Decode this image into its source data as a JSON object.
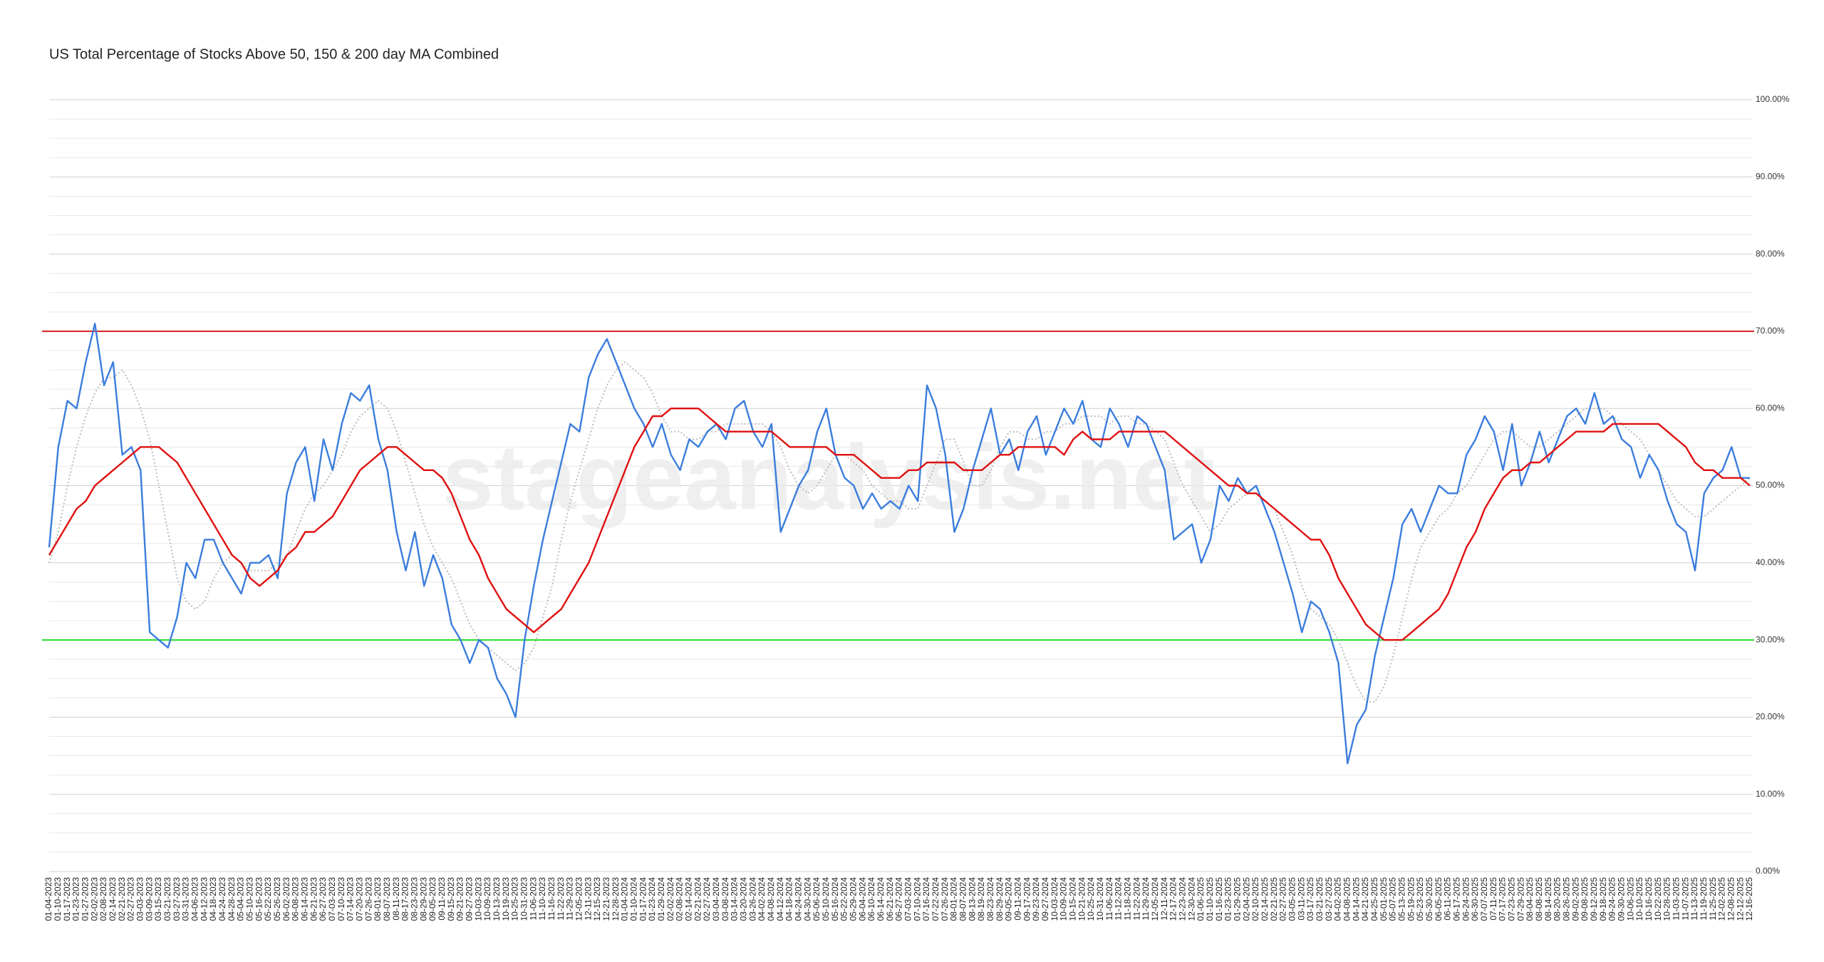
{
  "chart_data": {
    "type": "line",
    "title": "US Total Percentage of Stocks Above 50, 150 & 200 day MA Combined",
    "watermark": "stageanalysis.net",
    "categories": [
      "01-04-2023",
      "01-10-2023",
      "01-17-2023",
      "01-23-2023",
      "01-27-2023",
      "02-02-2023",
      "02-08-2023",
      "02-14-2023",
      "02-21-2023",
      "02-27-2023",
      "03-03-2023",
      "03-09-2023",
      "03-15-2023",
      "03-21-2023",
      "03-27-2023",
      "03-31-2023",
      "04-06-2023",
      "04-12-2023",
      "04-18-2023",
      "04-24-2023",
      "04-28-2023",
      "05-04-2023",
      "05-10-2023",
      "05-16-2023",
      "05-22-2023",
      "05-26-2023",
      "06-02-2023",
      "06-08-2023",
      "06-14-2023",
      "06-21-2023",
      "06-27-2023",
      "07-03-2023",
      "07-10-2023",
      "07-14-2023",
      "07-20-2023",
      "07-26-2023",
      "08-01-2023",
      "08-07-2023",
      "08-11-2023",
      "08-17-2023",
      "08-23-2023",
      "08-29-2023",
      "09-05-2023",
      "09-11-2023",
      "09-15-2023",
      "09-21-2023",
      "09-27-2023",
      "10-03-2023",
      "10-09-2023",
      "10-13-2023",
      "10-19-2023",
      "10-25-2023",
      "10-31-2023",
      "11-06-2023",
      "11-10-2023",
      "11-16-2023",
      "11-22-2023",
      "11-29-2023",
      "12-05-2023",
      "12-11-2023",
      "12-15-2023",
      "12-21-2023",
      "12-28-2023",
      "01-04-2024",
      "01-10-2024",
      "01-17-2024",
      "01-23-2024",
      "01-29-2024",
      "02-02-2024",
      "02-08-2024",
      "02-14-2024",
      "02-21-2024",
      "02-27-2024",
      "03-04-2024",
      "03-08-2024",
      "03-14-2024",
      "03-20-2024",
      "03-26-2024",
      "04-02-2024",
      "04-08-2024",
      "04-12-2024",
      "04-18-2024",
      "04-24-2024",
      "04-30-2024",
      "05-06-2024",
      "05-10-2024",
      "05-16-2024",
      "05-22-2024",
      "05-29-2024",
      "06-04-2024",
      "06-10-2024",
      "06-14-2024",
      "06-21-2024",
      "06-27-2024",
      "07-03-2024",
      "07-10-2024",
      "07-16-2024",
      "07-22-2024",
      "07-26-2024",
      "08-01-2024",
      "08-07-2024",
      "08-13-2024",
      "08-19-2024",
      "08-23-2024",
      "08-29-2024",
      "09-05-2024",
      "09-11-2024",
      "09-17-2024",
      "09-23-2024",
      "09-27-2024",
      "10-03-2024",
      "10-09-2024",
      "10-15-2024",
      "10-21-2024",
      "10-25-2024",
      "10-31-2024",
      "11-06-2024",
      "11-12-2024",
      "11-18-2024",
      "11-22-2024",
      "11-29-2024",
      "12-05-2024",
      "12-11-2024",
      "12-17-2024",
      "12-23-2024",
      "12-30-2024",
      "01-06-2025",
      "01-10-2025",
      "01-16-2025",
      "01-23-2025",
      "01-29-2025",
      "02-04-2025",
      "02-10-2025",
      "02-14-2025",
      "02-21-2025",
      "02-27-2025",
      "03-05-2025",
      "03-11-2025",
      "03-17-2025",
      "03-21-2025",
      "03-27-2025",
      "04-02-2025",
      "04-08-2025",
      "04-14-2025",
      "04-21-2025",
      "04-25-2025",
      "05-01-2025",
      "05-07-2025",
      "05-13-2025",
      "05-19-2025",
      "05-23-2025",
      "05-30-2025",
      "06-05-2025",
      "06-11-2025",
      "06-17-2025",
      "06-24-2025",
      "06-30-2025",
      "07-07-2025",
      "07-11-2025",
      "07-17-2025",
      "07-23-2025",
      "07-29-2025",
      "08-04-2025",
      "08-08-2025",
      "08-14-2025",
      "08-20-2025",
      "08-26-2025",
      "09-02-2025",
      "09-08-2025",
      "09-12-2025",
      "09-18-2025",
      "09-24-2025",
      "09-30-2025",
      "10-06-2025",
      "10-10-2025",
      "10-16-2025",
      "10-22-2025",
      "10-28-2025",
      "11-03-2025",
      "11-07-2025",
      "11-13-2025",
      "11-19-2025",
      "11-25-2025",
      "12-02-2025",
      "12-08-2025",
      "12-12-2025",
      "12-16-2025"
    ],
    "series": [
      {
        "color": "#bbbbbb",
        "line_style": "dotted",
        "values": [
          40,
          44,
          50,
          55,
          59,
          62,
          64,
          64,
          65,
          63,
          60,
          56,
          50,
          44,
          38,
          35,
          34,
          35,
          38,
          40,
          41,
          40,
          39,
          39,
          39,
          40,
          41,
          44,
          47,
          49,
          50,
          52,
          54,
          57,
          59,
          60,
          61,
          60,
          57,
          53,
          49,
          45,
          42,
          40,
          38,
          35,
          32,
          30,
          29,
          28,
          27,
          26,
          27,
          29,
          33,
          37,
          43,
          48,
          52,
          56,
          60,
          63,
          65,
          66,
          65,
          64,
          62,
          59,
          57,
          57,
          56,
          56,
          57,
          57,
          58,
          58,
          58,
          58,
          58,
          57,
          55,
          52,
          50,
          49,
          50,
          52,
          54,
          54,
          53,
          52,
          50,
          49,
          48,
          48,
          47,
          47,
          50,
          53,
          56,
          56,
          53,
          50,
          50,
          52,
          55,
          57,
          57,
          56,
          56,
          57,
          57,
          58,
          58,
          59,
          59,
          59,
          58,
          59,
          59,
          58,
          58,
          57,
          56,
          53,
          50,
          48,
          46,
          44,
          45,
          47,
          48,
          49,
          49,
          48,
          47,
          44,
          41,
          37,
          34,
          33,
          32,
          30,
          27,
          24,
          22,
          22,
          24,
          28,
          33,
          38,
          42,
          44,
          46,
          47,
          49,
          50,
          52,
          54,
          56,
          57,
          57,
          56,
          55,
          55,
          56,
          57,
          58,
          59,
          60,
          60,
          60,
          59,
          58,
          57,
          56,
          54,
          52,
          50,
          48,
          47,
          46,
          46,
          47,
          48,
          49,
          50,
          51
        ]
      },
      {
        "color": "#3b7ddd",
        "line_style": "solid",
        "values": [
          42,
          55,
          61,
          60,
          66,
          71,
          63,
          66,
          54,
          55,
          52,
          31,
          30,
          29,
          33,
          40,
          38,
          43,
          43,
          40,
          38,
          36,
          40,
          40,
          41,
          38,
          49,
          53,
          55,
          48,
          56,
          52,
          58,
          62,
          61,
          63,
          56,
          52,
          44,
          39,
          44,
          37,
          41,
          38,
          32,
          30,
          27,
          30,
          29,
          25,
          23,
          20,
          30,
          37,
          43,
          48,
          53,
          58,
          57,
          64,
          67,
          69,
          66,
          63,
          60,
          58,
          55,
          58,
          54,
          52,
          56,
          55,
          57,
          58,
          56,
          60,
          61,
          57,
          55,
          58,
          44,
          47,
          50,
          52,
          57,
          60,
          54,
          51,
          50,
          47,
          49,
          47,
          48,
          47,
          50,
          48,
          63,
          60,
          54,
          44,
          47,
          52,
          56,
          60,
          54,
          56,
          52,
          57,
          59,
          54,
          57,
          60,
          58,
          61,
          56,
          55,
          60,
          58,
          55,
          59,
          58,
          55,
          52,
          43,
          44,
          45,
          40,
          43,
          50,
          48,
          51,
          49,
          50,
          47,
          44,
          40,
          36,
          31,
          35,
          34,
          31,
          27,
          14,
          19,
          21,
          28,
          33,
          38,
          45,
          47,
          44,
          47,
          50,
          49,
          49,
          54,
          56,
          59,
          57,
          52,
          58,
          50,
          53,
          57,
          53,
          56,
          59,
          60,
          58,
          62,
          58,
          59,
          56,
          55,
          51,
          54,
          52,
          48,
          45,
          44,
          39,
          49,
          51,
          52,
          55,
          51,
          51
        ]
      },
      {
        "color": "#e01010",
        "line_style": "solid",
        "values": [
          41,
          43,
          45,
          47,
          48,
          50,
          51,
          52,
          53,
          54,
          55,
          55,
          55,
          54,
          53,
          51,
          49,
          47,
          45,
          43,
          41,
          40,
          38,
          37,
          38,
          39,
          41,
          42,
          44,
          44,
          45,
          46,
          48,
          50,
          52,
          53,
          54,
          55,
          55,
          54,
          53,
          52,
          52,
          51,
          49,
          46,
          43,
          41,
          38,
          36,
          34,
          33,
          32,
          31,
          32,
          33,
          34,
          36,
          38,
          40,
          43,
          46,
          49,
          52,
          55,
          57,
          59,
          59,
          60,
          60,
          60,
          60,
          59,
          58,
          57,
          57,
          57,
          57,
          57,
          57,
          56,
          55,
          55,
          55,
          55,
          55,
          54,
          54,
          54,
          53,
          52,
          51,
          51,
          51,
          52,
          52,
          53,
          53,
          53,
          53,
          52,
          52,
          52,
          53,
          54,
          54,
          55,
          55,
          55,
          55,
          55,
          54,
          56,
          57,
          56,
          56,
          56,
          57,
          57,
          57,
          57,
          57,
          57,
          56,
          55,
          54,
          53,
          52,
          51,
          50,
          50,
          49,
          49,
          48,
          47,
          46,
          45,
          44,
          43,
          43,
          41,
          38,
          36,
          34,
          32,
          31,
          30,
          30,
          30,
          31,
          32,
          33,
          34,
          36,
          39,
          42,
          44,
          47,
          49,
          51,
          52,
          52,
          53,
          53,
          54,
          55,
          56,
          57,
          57,
          57,
          57,
          58,
          58,
          58,
          58,
          58,
          58,
          57,
          56,
          55,
          53,
          52,
          52,
          51,
          51,
          51,
          50
        ]
      }
    ],
    "ylim": [
      0,
      100
    ],
    "yticks": [
      {
        "value": 0,
        "label": "0.00%"
      },
      {
        "value": 10,
        "label": "10.00%"
      },
      {
        "value": 20,
        "label": "20.00%"
      },
      {
        "value": 30,
        "label": "30.00%"
      },
      {
        "value": 40,
        "label": "40.00%"
      },
      {
        "value": 50,
        "label": "50.00%"
      },
      {
        "value": 60,
        "label": "60.00%"
      },
      {
        "value": 70,
        "label": "70.00%"
      },
      {
        "value": 80,
        "label": "80.00%"
      },
      {
        "value": 90,
        "label": "90.00%"
      },
      {
        "value": 100,
        "label": "100.00%"
      }
    ],
    "minor_gridlines": [
      2.5,
      5,
      7.5,
      12.5,
      15,
      17.5,
      22.5,
      25,
      27.5,
      32.5,
      35,
      37.5,
      42.5,
      45,
      47.5,
      52.5,
      55,
      57.5,
      62.5,
      65,
      67.5,
      72.5,
      75,
      77.5,
      82.5,
      85,
      87.5,
      92.5,
      95,
      97.5
    ],
    "reference_lines": [
      {
        "value": 70,
        "color": "#d42020"
      },
      {
        "value": 30,
        "color": "#22dd22"
      }
    ],
    "grid": true
  }
}
